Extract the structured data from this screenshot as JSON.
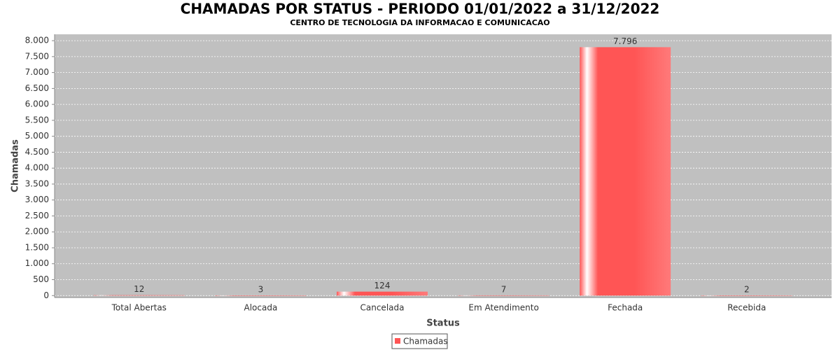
{
  "chart_data": {
    "type": "bar",
    "title": "CHAMADAS POR STATUS - PERIODO 01/01/2022 a 31/12/2022",
    "subtitle": "CENTRO DE TECNOLOGIA DA INFORMACAO E COMUNICACAO",
    "x_label": "Status",
    "y_label": "Chamadas",
    "categories": [
      "Total Abertas",
      "Alocada",
      "Cancelada",
      "Em Atendimento",
      "Fechada",
      "Recebida"
    ],
    "series": [
      {
        "name": "Chamadas",
        "color": "#ff5555",
        "values": [
          12,
          3,
          124,
          7,
          7796,
          2
        ],
        "value_labels": [
          "12",
          "3",
          "124",
          "7",
          "7.796",
          "2"
        ]
      }
    ],
    "ylim": [
      -60,
      8200
    ],
    "yticks": [
      0,
      500,
      {
        "value": 1000,
        "label": "1.000"
      },
      {
        "value": 1500,
        "label": "1.500"
      },
      {
        "value": 2000,
        "label": "2.000"
      },
      {
        "value": 2500,
        "label": "2.500"
      },
      {
        "value": 3000,
        "label": "3.000"
      },
      {
        "value": 3500,
        "label": "3.500"
      },
      {
        "value": 4000,
        "label": "4.000"
      },
      {
        "value": 4500,
        "label": "4.500"
      },
      {
        "value": 5000,
        "label": "5.000"
      },
      {
        "value": 5500,
        "label": "5.500"
      },
      {
        "value": 6000,
        "label": "6.000"
      },
      {
        "value": 6500,
        "label": "6.500"
      },
      {
        "value": 7000,
        "label": "7.000"
      },
      {
        "value": 7500,
        "label": "7.500"
      },
      {
        "value": 8000,
        "label": "8.000"
      }
    ],
    "grid": true,
    "legend": "bottom"
  }
}
